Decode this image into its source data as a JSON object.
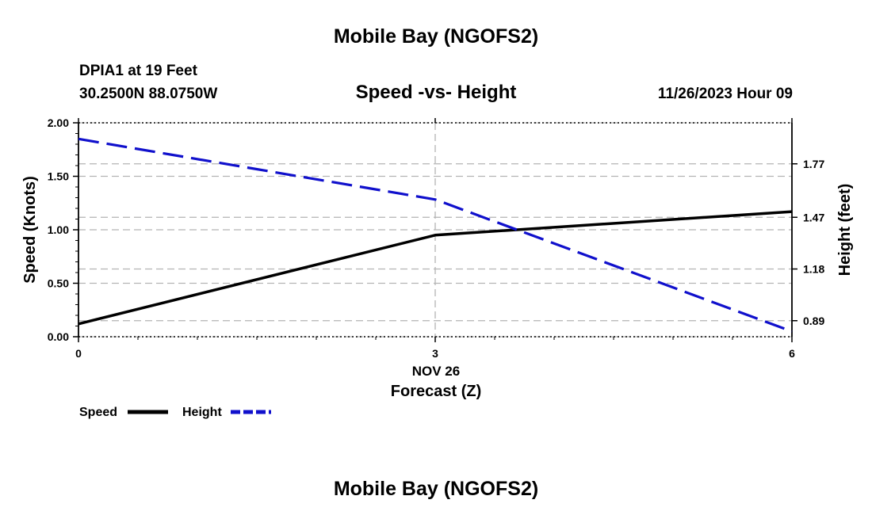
{
  "header": {
    "title": "Mobile Bay (NGOFS2)",
    "station": "DPIA1 at 19 Feet",
    "coords": "30.2500N  88.0750W",
    "timestamp": "11/26/2023 Hour 09"
  },
  "footer": {
    "title": "Mobile Bay (NGOFS2)"
  },
  "colors": {
    "speed": "#000000",
    "height": "#1010cc",
    "grid": "#b4b4b4",
    "axis": "#000000"
  },
  "chart_data": {
    "type": "line",
    "title": "Speed -vs- Height",
    "x": [
      0,
      3,
      6
    ],
    "xlim": [
      0,
      6
    ],
    "x_ticks": [
      {
        "value": 0,
        "label": "0"
      },
      {
        "value": 3,
        "label": "3"
      },
      {
        "value": 6,
        "label": "6"
      }
    ],
    "x_date_label": "NOV 26",
    "xlabel": "Forecast (Z)",
    "ylabel": "Speed (Knots)",
    "ylim": [
      0,
      2
    ],
    "y_ticks": [
      "0.00",
      "0.50",
      "1.00",
      "1.50",
      "2.00"
    ],
    "y2label": "Height (feet)",
    "y2lim": [
      0.8,
      2.0
    ],
    "y2_ticks": [
      "0.89",
      "1.18",
      "1.47",
      "1.77"
    ],
    "grid": true,
    "legend_position": "bottom-left",
    "series": [
      {
        "name": "Speed",
        "axis": "left",
        "style": "solid",
        "x": [
          0,
          3,
          6
        ],
        "values": [
          0.12,
          0.95,
          1.17
        ]
      },
      {
        "name": "Height",
        "axis": "right",
        "style": "dashed",
        "x": [
          0,
          3,
          6
        ],
        "values": [
          1.91,
          1.57,
          0.83
        ]
      }
    ]
  }
}
